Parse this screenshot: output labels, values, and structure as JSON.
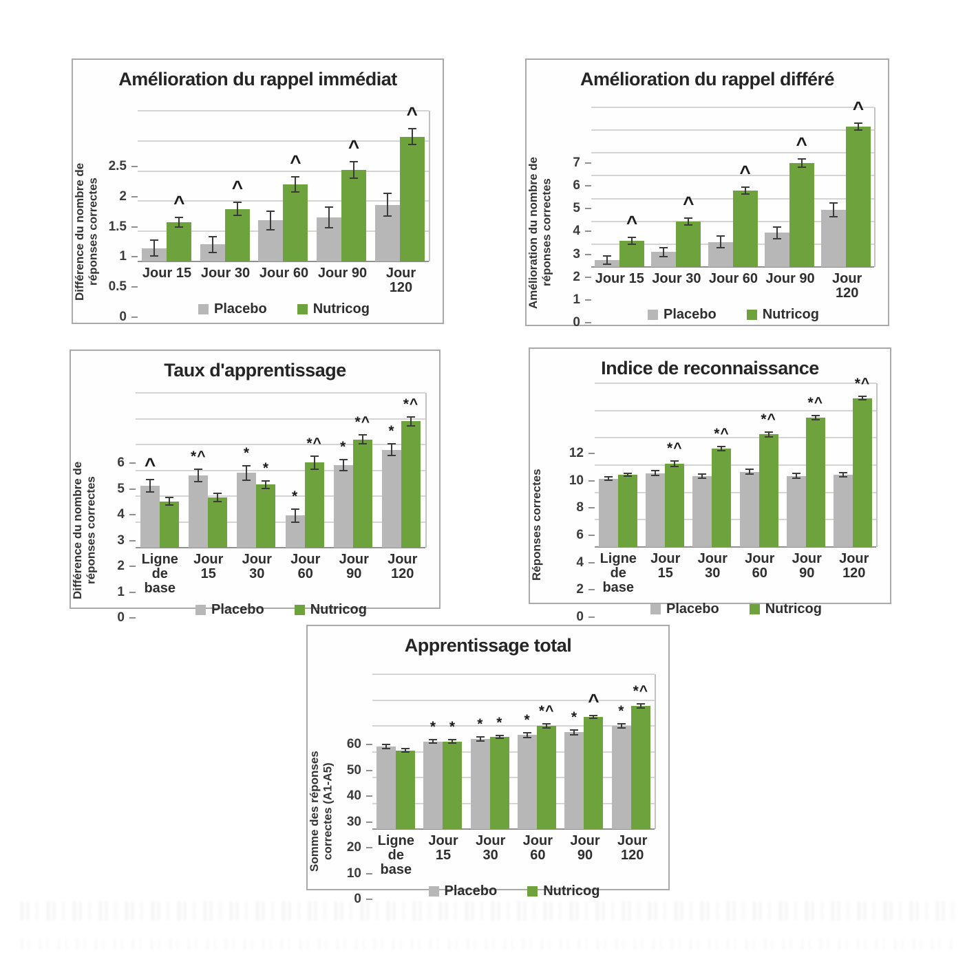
{
  "figure": {
    "legend_labels": [
      "Placebo",
      "Nutricog"
    ],
    "colors": {
      "placebo": "#b7b7b7",
      "nutricog": "#6da23d",
      "error_bar": "#3a3a3a"
    }
  },
  "chart_data": [
    {
      "type": "bar",
      "title": "Amélioration du rappel immédiat",
      "ylabel": "Différence du nombre de réponses correctes",
      "xlabel": "",
      "ylim": [
        0,
        2.5
      ],
      "yticks": [
        0,
        0.5,
        1,
        1.5,
        2,
        2.5
      ],
      "ytick_labels": [
        "0",
        "0.5",
        "1",
        "1.5",
        "2",
        "2.5"
      ],
      "grid": true,
      "legend_position": "bottom",
      "categories": [
        "Jour 15",
        "Jour 30",
        "Jour 60",
        "Jour 90",
        "Jour 120"
      ],
      "series": [
        {
          "name": "Placebo",
          "color": "#b7b7b7",
          "values": [
            0.22,
            0.28,
            0.68,
            0.73,
            0.94
          ],
          "errors": [
            0.13,
            0.13,
            0.15,
            0.17,
            0.19
          ],
          "annotations": [
            "",
            "",
            "",
            "",
            ""
          ]
        },
        {
          "name": "Nutricog",
          "color": "#6da23d",
          "values": [
            0.65,
            0.87,
            1.28,
            1.52,
            2.07
          ],
          "errors": [
            0.08,
            0.11,
            0.13,
            0.14,
            0.13
          ],
          "annotations": [
            "^",
            "^",
            "^",
            "^",
            "^"
          ]
        }
      ]
    },
    {
      "type": "bar",
      "title": "Amélioration du rappel différé",
      "ylabel": "Amélioration du nombre de réponses correctes",
      "xlabel": "",
      "ylim": [
        0,
        7
      ],
      "yticks": [
        0,
        1,
        2,
        3,
        4,
        5,
        6,
        7
      ],
      "ytick_labels": [
        "0",
        "1",
        "2",
        "3",
        "4",
        "5",
        "6",
        "7"
      ],
      "grid": true,
      "legend_position": "bottom",
      "categories": [
        "Jour 15",
        "Jour 30",
        "Jour 60",
        "Jour 90",
        "Jour 120"
      ],
      "series": [
        {
          "name": "Placebo",
          "color": "#b7b7b7",
          "values": [
            0.3,
            0.65,
            1.1,
            1.5,
            2.5
          ],
          "errors": [
            0.18,
            0.2,
            0.25,
            0.25,
            0.3
          ],
          "annotations": [
            "",
            "",
            "",
            "",
            ""
          ]
        },
        {
          "name": "Nutricog",
          "color": "#6da23d",
          "values": [
            1.15,
            2.0,
            3.35,
            4.55,
            6.15
          ],
          "errors": [
            0.15,
            0.15,
            0.15,
            0.18,
            0.15
          ],
          "annotations": [
            "^",
            "^",
            "^",
            "^",
            "^"
          ]
        }
      ]
    },
    {
      "type": "bar",
      "title": "Taux d'apprentissage",
      "ylabel": "Différence du nombre de réponses correctes",
      "xlabel": "",
      "ylim": [
        0,
        6
      ],
      "yticks": [
        0,
        1,
        2,
        3,
        4,
        5,
        6
      ],
      "ytick_labels": [
        "0",
        "1",
        "2",
        "3",
        "4",
        "5",
        "6"
      ],
      "grid": true,
      "legend_position": "bottom",
      "categories": [
        "Ligne de base",
        "Jour 15",
        "Jour 30",
        "Jour 60",
        "Jour 90",
        "Jour 120"
      ],
      "series": [
        {
          "name": "Placebo",
          "color": "#b7b7b7",
          "values": [
            2.4,
            2.8,
            2.9,
            1.25,
            3.2,
            3.8
          ],
          "errors": [
            0.25,
            0.25,
            0.28,
            0.25,
            0.22,
            0.22
          ],
          "annotations": [
            "^",
            "*^",
            "*",
            "*",
            "*",
            "*"
          ]
        },
        {
          "name": "Nutricog",
          "color": "#6da23d",
          "values": [
            1.8,
            1.95,
            2.45,
            3.3,
            4.2,
            4.9
          ],
          "errors": [
            0.15,
            0.15,
            0.15,
            0.25,
            0.18,
            0.18
          ],
          "annotations": [
            "",
            "",
            "*",
            "*^",
            "*^",
            "*^"
          ]
        }
      ]
    },
    {
      "type": "bar",
      "title": "Indice de reconnaissance",
      "ylabel": "Réponses correctes",
      "xlabel": "",
      "ylim": [
        0,
        12
      ],
      "yticks": [
        0,
        2,
        4,
        6,
        8,
        10,
        12
      ],
      "ytick_labels": [
        "0",
        "2",
        "4",
        "6",
        "8",
        "10",
        "12"
      ],
      "grid": true,
      "legend_position": "bottom",
      "categories": [
        "Ligne de base",
        "Jour 15",
        "Jour 30",
        "Jour 60",
        "Jour 90",
        "Jour 120"
      ],
      "series": [
        {
          "name": "Placebo",
          "color": "#b7b7b7",
          "values": [
            5.0,
            5.4,
            5.2,
            5.5,
            5.2,
            5.3
          ],
          "errors": [
            0.12,
            0.18,
            0.15,
            0.18,
            0.18,
            0.15
          ],
          "annotations": [
            "",
            "",
            "",
            "",
            "",
            ""
          ]
        },
        {
          "name": "Nutricog",
          "color": "#6da23d",
          "values": [
            5.3,
            6.1,
            7.2,
            8.25,
            9.5,
            10.9
          ],
          "errors": [
            0.12,
            0.18,
            0.15,
            0.18,
            0.15,
            0.12
          ],
          "annotations": [
            "",
            "*^",
            "*^",
            "*^",
            "*^",
            "*^"
          ]
        }
      ]
    },
    {
      "type": "bar",
      "title": "Apprentissage total",
      "ylabel": "Somme des réponses correctes (A1-A5)",
      "xlabel": "",
      "ylim": [
        0,
        60
      ],
      "yticks": [
        0,
        10,
        20,
        30,
        40,
        50,
        60
      ],
      "ytick_labels": [
        "0",
        "10",
        "20",
        "30",
        "40",
        "50",
        "60"
      ],
      "grid": true,
      "legend_position": "bottom",
      "categories": [
        "Ligne de base",
        "Jour 15",
        "Jour 30",
        "Jour 60",
        "Jour 90",
        "Jour 120"
      ],
      "series": [
        {
          "name": "Placebo",
          "color": "#b7b7b7",
          "values": [
            32,
            34,
            35,
            36.5,
            37.5,
            40
          ],
          "errors": [
            0.8,
            0.7,
            0.8,
            0.9,
            0.9,
            0.9
          ],
          "annotations": [
            "",
            "*",
            "*",
            "*",
            "*",
            "*"
          ]
        },
        {
          "name": "Nutricog",
          "color": "#6da23d",
          "values": [
            30.5,
            34,
            35.8,
            40,
            43.5,
            47.8
          ],
          "errors": [
            0.7,
            0.6,
            0.5,
            0.8,
            0.6,
            0.8
          ],
          "annotations": [
            "",
            "*",
            "*",
            "*^",
            "^",
            "*^"
          ]
        }
      ]
    }
  ]
}
